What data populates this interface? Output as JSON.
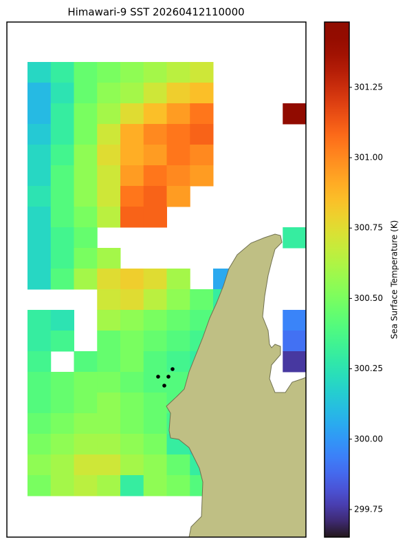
{
  "map": {
    "title": "Himawari-9 SST 20260412110000",
    "colorbar": {
      "label": "Sea Surface Temperature (K)",
      "range": [
        299.652,
        301.482
      ],
      "ticks": [
        299.75,
        {
          "value": 300,
          "label": "300.00"
        },
        300.25,
        {
          "value": 300.5,
          "label": "300.50"
        },
        300.75,
        {
          "value": 301,
          "label": "301.00"
        },
        301.25
      ]
    },
    "sst": [
      [
        300.2,
        300.3,
        300.45,
        300.5,
        300.55,
        300.6,
        300.65,
        300.7,
        null,
        null,
        null,
        null
      ],
      [
        300.1,
        300.25,
        300.45,
        300.55,
        300.6,
        300.7,
        300.8,
        300.85,
        null,
        null,
        null,
        null
      ],
      [
        300.1,
        300.3,
        300.5,
        300.6,
        300.75,
        300.85,
        300.95,
        301.05,
        null,
        null,
        null,
        301.45
      ],
      [
        300.15,
        300.3,
        300.5,
        300.7,
        300.9,
        301.0,
        301.05,
        301.1,
        null,
        null,
        null,
        null
      ],
      [
        300.2,
        300.35,
        300.55,
        300.75,
        300.9,
        300.95,
        301.05,
        301.0,
        null,
        null,
        null,
        null
      ],
      [
        300.2,
        300.4,
        300.55,
        300.7,
        300.95,
        301.05,
        301.0,
        300.95,
        null,
        null,
        null,
        null
      ],
      [
        300.25,
        300.4,
        300.55,
        300.7,
        301.05,
        301.1,
        300.95,
        null,
        null,
        null,
        null,
        null
      ],
      [
        300.2,
        300.4,
        300.5,
        300.65,
        301.1,
        301.1,
        null,
        null,
        null,
        null,
        null,
        null
      ],
      [
        300.2,
        300.35,
        300.45,
        null,
        null,
        null,
        null,
        null,
        null,
        null,
        null,
        300.3
      ],
      [
        300.2,
        300.35,
        300.5,
        300.6,
        null,
        null,
        null,
        null,
        null,
        null,
        null,
        null
      ],
      [
        300.2,
        300.4,
        300.6,
        300.75,
        300.8,
        300.75,
        300.6,
        null,
        300.05,
        null,
        null,
        null
      ],
      [
        null,
        null,
        null,
        300.7,
        300.75,
        300.65,
        300.55,
        300.45,
        300.3,
        null,
        null,
        null
      ],
      [
        300.3,
        300.25,
        null,
        300.6,
        300.55,
        300.5,
        300.45,
        300.4,
        300.3,
        null,
        null,
        299.95
      ],
      [
        300.3,
        300.35,
        null,
        300.45,
        300.5,
        300.45,
        300.4,
        300.35,
        null,
        null,
        null,
        299.9
      ],
      [
        300.35,
        null,
        300.4,
        300.45,
        300.5,
        300.4,
        300.35,
        300.3,
        null,
        null,
        null,
        299.75
      ],
      [
        300.4,
        300.45,
        300.5,
        300.5,
        300.45,
        300.4,
        300.4,
        null,
        null,
        null,
        null,
        null
      ],
      [
        300.4,
        300.45,
        300.5,
        300.55,
        300.5,
        300.45,
        300.4,
        null,
        null,
        null,
        null,
        null
      ],
      [
        300.45,
        300.5,
        300.55,
        300.55,
        300.5,
        300.45,
        300.35,
        null,
        null,
        null,
        null,
        null
      ],
      [
        300.5,
        300.55,
        300.6,
        300.6,
        300.55,
        300.5,
        300.3,
        300.2,
        null,
        null,
        null,
        null
      ],
      [
        300.55,
        300.6,
        300.7,
        300.7,
        300.6,
        300.55,
        300.45,
        300.3,
        null,
        null,
        null,
        null
      ],
      [
        300.5,
        300.6,
        300.65,
        300.6,
        300.3,
        300.55,
        300.5,
        300.4,
        null,
        null,
        null,
        null
      ]
    ]
  }
}
